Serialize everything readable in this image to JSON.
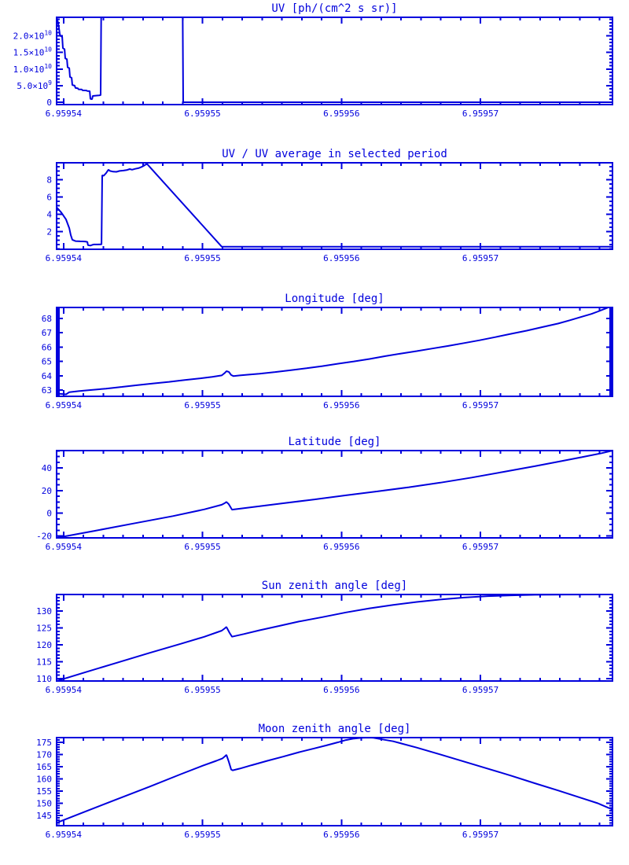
{
  "page": {
    "background": "#ffffff"
  },
  "colors": {
    "accent": "#0000dd",
    "plot_line": "#0000dd"
  },
  "x_axis": {
    "lim": [
      6.9595395,
      6.9595795
    ],
    "ticks": [
      {
        "v": 6.95954,
        "label": "6.95954"
      },
      {
        "v": 6.95955,
        "label": "6.95955"
      },
      {
        "v": 6.95956,
        "label": "6.95956"
      },
      {
        "v": 6.95957,
        "label": "6.95957"
      }
    ],
    "minor_divisions": 7
  },
  "chart_data": [
    {
      "id": "uv",
      "type": "line",
      "title": "UV [ph/(cm^2 s sr)]",
      "ylabel": "",
      "ylim": [
        -700000000.0,
        25600000000.0
      ],
      "yticks": [
        {
          "v": 0,
          "label": "0"
        },
        {
          "v": 5000000000.0,
          "label": "5.0×10^9"
        },
        {
          "v": 10000000000.0,
          "label": "1.0×10^10"
        },
        {
          "v": 15000000000.0,
          "label": "1.5×10^10"
        },
        {
          "v": 20000000000.0,
          "label": "2.0×10^10"
        }
      ],
      "yminor": 1000000000.0,
      "points": [
        [
          6.9595395,
          25600000000.0
        ],
        [
          6.95953961,
          24000000000.0
        ],
        [
          6.95953967,
          22300000000.0
        ],
        [
          6.95953973,
          20500000000.0
        ],
        [
          6.95953978,
          20000000000.0
        ],
        [
          6.9595399,
          19700000000.0
        ],
        [
          6.95953995,
          16300000000.0
        ],
        [
          6.95954007,
          16000000000.0
        ],
        [
          6.95954012,
          13200000000.0
        ],
        [
          6.95954024,
          13000000000.0
        ],
        [
          6.95954029,
          10500000000.0
        ],
        [
          6.95954041,
          10300000000.0
        ],
        [
          6.95954046,
          7600000000.0
        ],
        [
          6.95954058,
          7400000000.0
        ],
        [
          6.95954063,
          5200000000.0
        ],
        [
          6.9595408,
          5000000000.0
        ],
        [
          6.95954086,
          4300000000.0
        ],
        [
          6.95954103,
          4200000000.0
        ],
        [
          6.95954108,
          3900000000.0
        ],
        [
          6.95954131,
          3850000000.0
        ],
        [
          6.95954137,
          3600000000.0
        ],
        [
          6.95954165,
          3550000000.0
        ],
        [
          6.95954171,
          3400000000.0
        ],
        [
          6.95954188,
          3350000000.0
        ],
        [
          6.95954193,
          1000000000.0
        ],
        [
          6.95954205,
          900000000.0
        ],
        [
          6.9595421,
          1900000000.0
        ],
        [
          6.95954233,
          2000000000.0
        ],
        [
          6.95954256,
          2100000000.0
        ],
        [
          6.95954267,
          2150000000.0
        ],
        [
          6.95954273,
          40000000000.0
        ],
        [
          6.95954855,
          40000000000.0
        ],
        [
          6.95954861,
          0
        ],
        [
          6.9595795,
          0
        ]
      ]
    },
    {
      "id": "uv-ratio",
      "type": "line",
      "title": "UV / UV average in selected period",
      "ylabel": "",
      "ylim": [
        -0.05,
        9.95
      ],
      "yticks": [
        {
          "v": 2,
          "label": "2"
        },
        {
          "v": 4,
          "label": "4"
        },
        {
          "v": 6,
          "label": "6"
        },
        {
          "v": 8,
          "label": "8"
        }
      ],
      "yminor": 0.5,
      "points": [
        [
          6.9595395,
          4.8
        ],
        [
          6.95953984,
          4.2
        ],
        [
          6.95954018,
          3.4
        ],
        [
          6.95954041,
          2.4
        ],
        [
          6.95954052,
          1.6
        ],
        [
          6.95954063,
          1.05
        ],
        [
          6.95954086,
          0.9
        ],
        [
          6.9595412,
          0.87
        ],
        [
          6.95954154,
          0.85
        ],
        [
          6.95954171,
          0.8
        ],
        [
          6.95954176,
          0.42
        ],
        [
          6.95954193,
          0.38
        ],
        [
          6.95954205,
          0.45
        ],
        [
          6.95954216,
          0.5
        ],
        [
          6.95954244,
          0.5
        ],
        [
          6.95954273,
          0.52
        ],
        [
          6.95954278,
          8.5
        ],
        [
          6.95954289,
          8.45
        ],
        [
          6.95954306,
          8.75
        ],
        [
          6.95954323,
          9.15
        ],
        [
          6.95954335,
          9.0
        ],
        [
          6.95954357,
          8.92
        ],
        [
          6.9595438,
          8.9
        ],
        [
          6.95954403,
          9.0
        ],
        [
          6.95954431,
          9.05
        ],
        [
          6.95954454,
          9.1
        ],
        [
          6.95954476,
          9.22
        ],
        [
          6.95954493,
          9.15
        ],
        [
          6.95954516,
          9.25
        ],
        [
          6.95954538,
          9.32
        ],
        [
          6.95954555,
          9.42
        ],
        [
          6.95954572,
          9.55
        ],
        [
          6.95954589,
          9.72
        ],
        [
          6.95954601,
          9.8
        ],
        [
          6.95955138,
          0.25
        ],
        [
          6.9595795,
          0.25
        ]
      ]
    },
    {
      "id": "longitude",
      "type": "line",
      "title": "Longitude [deg]",
      "ylabel": "deg",
      "ylim": [
        62.56,
        68.77
      ],
      "yticks": [
        {
          "v": 63,
          "label": "63"
        },
        {
          "v": 64,
          "label": "64"
        },
        {
          "v": 65,
          "label": "65"
        },
        {
          "v": 66,
          "label": "66"
        },
        {
          "v": 67,
          "label": "67"
        },
        {
          "v": 68,
          "label": "68"
        }
      ],
      "yminor": 0.1,
      "points": [
        [
          6.9595395,
          62.75
        ],
        [
          6.95953995,
          62.72
        ],
        [
          6.95954018,
          62.7
        ],
        [
          6.95954041,
          62.85
        ],
        [
          6.95954108,
          62.92
        ],
        [
          6.95954193,
          63.0
        ],
        [
          6.95954306,
          63.1
        ],
        [
          6.9595442,
          63.22
        ],
        [
          6.95954533,
          63.34
        ],
        [
          6.95954646,
          63.46
        ],
        [
          6.95954759,
          63.57
        ],
        [
          6.95954872,
          63.7
        ],
        [
          6.95954985,
          63.82
        ],
        [
          6.9595507,
          63.92
        ],
        [
          6.95955138,
          64.02
        ],
        [
          6.95955161,
          64.2
        ],
        [
          6.95955172,
          64.32
        ],
        [
          6.95955189,
          64.27
        ],
        [
          6.95955206,
          64.05
        ],
        [
          6.95955223,
          63.97
        ],
        [
          6.95955268,
          64.02
        ],
        [
          6.95955325,
          64.07
        ],
        [
          6.9595541,
          64.14
        ],
        [
          6.95955523,
          64.26
        ],
        [
          6.95955636,
          64.39
        ],
        [
          6.95955749,
          64.52
        ],
        [
          6.95955862,
          64.67
        ],
        [
          6.95955976,
          64.84
        ],
        [
          6.95956089,
          65.0
        ],
        [
          6.95956202,
          65.17
        ],
        [
          6.95956315,
          65.37
        ],
        [
          6.95956428,
          65.55
        ],
        [
          6.95956541,
          65.72
        ],
        [
          6.95956654,
          65.9
        ],
        [
          6.95956768,
          66.08
        ],
        [
          6.95956881,
          66.28
        ],
        [
          6.95956994,
          66.48
        ],
        [
          6.95957107,
          66.7
        ],
        [
          6.9595722,
          66.93
        ],
        [
          6.95957333,
          67.15
        ],
        [
          6.95957447,
          67.4
        ],
        [
          6.9595756,
          67.65
        ],
        [
          6.95957645,
          67.88
        ],
        [
          6.95957729,
          68.12
        ],
        [
          6.95957799,
          68.32
        ],
        [
          6.95957855,
          68.52
        ],
        [
          6.959579,
          68.7
        ],
        [
          6.95957934,
          68.83
        ],
        [
          6.9595795,
          68.88
        ]
      ]
    },
    {
      "id": "latitude",
      "type": "line",
      "title": "Latitude [deg]",
      "ylabel": "deg",
      "ylim": [
        -21.7,
        55.3
      ],
      "yticks": [
        {
          "v": -20,
          "label": "-20"
        },
        {
          "v": 0,
          "label": "0"
        },
        {
          "v": 20,
          "label": "20"
        },
        {
          "v": 40,
          "label": "40"
        }
      ],
      "yminor": 5,
      "points": [
        [
          6.9595395,
          -21.7
        ],
        [
          6.95954222,
          -15.5
        ],
        [
          6.95954504,
          -9.0
        ],
        [
          6.95954787,
          -2.5
        ],
        [
          6.95955014,
          3.5
        ],
        [
          6.95955138,
          7.5
        ],
        [
          6.95955161,
          9.0
        ],
        [
          6.95955172,
          10.0
        ],
        [
          6.95955189,
          8.0
        ],
        [
          6.95955212,
          3.2
        ],
        [
          6.95955297,
          4.5
        ],
        [
          6.9595541,
          6.2
        ],
        [
          6.9595558,
          8.8
        ],
        [
          6.95955806,
          12.2
        ],
        [
          6.95956032,
          15.8
        ],
        [
          6.95956258,
          19.3
        ],
        [
          6.95956485,
          23.0
        ],
        [
          6.95956711,
          27.0
        ],
        [
          6.95956937,
          31.5
        ],
        [
          6.95957164,
          36.5
        ],
        [
          6.9595739,
          41.5
        ],
        [
          6.9595756,
          45.5
        ],
        [
          6.95957729,
          49.5
        ],
        [
          6.95957872,
          53.0
        ],
        [
          6.9595795,
          55.3
        ]
      ]
    },
    {
      "id": "sun-zenith",
      "type": "line",
      "title": "Sun zenith angle [deg]",
      "ylabel": "deg",
      "ylim": [
        109.3,
        134.9
      ],
      "yticks": [
        {
          "v": 110,
          "label": "110"
        },
        {
          "v": 115,
          "label": "115"
        },
        {
          "v": 120,
          "label": "120"
        },
        {
          "v": 125,
          "label": "125"
        },
        {
          "v": 130,
          "label": "130"
        }
      ],
      "yminor": 1,
      "points": [
        [
          6.9595395,
          109.3
        ],
        [
          6.95954165,
          112.0
        ],
        [
          6.95954391,
          114.8
        ],
        [
          6.95954618,
          117.6
        ],
        [
          6.95954844,
          120.3
        ],
        [
          6.95955014,
          122.4
        ],
        [
          6.95955138,
          124.2
        ],
        [
          6.95955161,
          124.9
        ],
        [
          6.95955172,
          125.3
        ],
        [
          6.95955195,
          123.5
        ],
        [
          6.95955212,
          122.4
        ],
        [
          6.95955297,
          123.2
        ],
        [
          6.9595541,
          124.3
        ],
        [
          6.95955551,
          125.6
        ],
        [
          6.95955693,
          126.9
        ],
        [
          6.95955862,
          128.2
        ],
        [
          6.95956032,
          129.6
        ],
        [
          6.95956202,
          130.8
        ],
        [
          6.95956372,
          131.8
        ],
        [
          6.95956541,
          132.7
        ],
        [
          6.95956711,
          133.4
        ],
        [
          6.95956881,
          134.0
        ],
        [
          6.95957051,
          134.4
        ],
        [
          6.9595722,
          134.65
        ],
        [
          6.9595739,
          134.8
        ],
        [
          6.95957616,
          134.88
        ],
        [
          6.9595795,
          134.9
        ]
      ]
    },
    {
      "id": "moon-zenith",
      "type": "line",
      "title": "Moon zenith angle [deg]",
      "ylabel": "deg",
      "ylim": [
        140.8,
        176.9
      ],
      "yticks": [
        {
          "v": 145,
          "label": "145"
        },
        {
          "v": 150,
          "label": "150"
        },
        {
          "v": 155,
          "label": "155"
        },
        {
          "v": 160,
          "label": "160"
        },
        {
          "v": 165,
          "label": "165"
        },
        {
          "v": 170,
          "label": "170"
        },
        {
          "v": 175,
          "label": "175"
        }
      ],
      "yminor": 1,
      "points": [
        [
          6.9595395,
          142.0
        ],
        [
          6.95954165,
          146.8
        ],
        [
          6.95954391,
          151.8
        ],
        [
          6.95954618,
          156.8
        ],
        [
          6.95954844,
          161.9
        ],
        [
          6.95955002,
          165.4
        ],
        [
          6.95955099,
          167.4
        ],
        [
          6.95955144,
          168.4
        ],
        [
          6.95955161,
          169.2
        ],
        [
          6.95955172,
          169.8
        ],
        [
          6.95955189,
          167.0
        ],
        [
          6.95955206,
          163.8
        ],
        [
          6.95955217,
          163.5
        ],
        [
          6.95955268,
          164.2
        ],
        [
          6.95955353,
          165.6
        ],
        [
          6.95955466,
          167.4
        ],
        [
          6.9595558,
          169.1
        ],
        [
          6.95955693,
          170.9
        ],
        [
          6.95955806,
          172.5
        ],
        [
          6.95955891,
          173.7
        ],
        [
          6.95955976,
          175.0
        ],
        [
          6.95956032,
          175.9
        ],
        [
          6.95956089,
          176.5
        ],
        [
          6.95956145,
          176.8
        ],
        [
          6.95956202,
          176.9
        ],
        [
          6.9595623,
          176.8
        ],
        [
          6.95956372,
          175.4
        ],
        [
          6.95956541,
          172.8
        ],
        [
          6.95956711,
          170.0
        ],
        [
          6.95956881,
          167.1
        ],
        [
          6.95957051,
          164.2
        ],
        [
          6.9595722,
          161.3
        ],
        [
          6.9595739,
          158.2
        ],
        [
          6.9595756,
          155.2
        ],
        [
          6.95957729,
          152.1
        ],
        [
          6.95957844,
          150.0
        ],
        [
          6.9595795,
          147.4
        ]
      ]
    }
  ]
}
